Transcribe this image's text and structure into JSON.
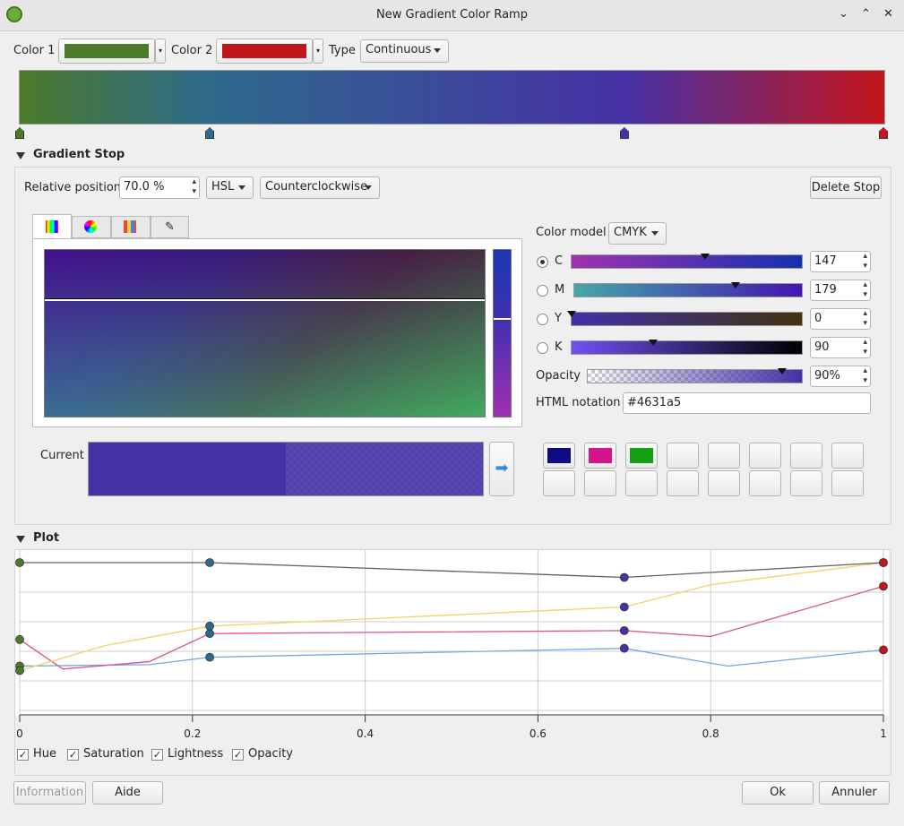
{
  "window": {
    "title": "New Gradient Color Ramp"
  },
  "toolbar": {
    "color1_label": "Color 1",
    "color1": "#4a7a2a",
    "color2_label": "Color 2",
    "color2": "#c0161c",
    "type_label": "Type",
    "type": "Continuous"
  },
  "gradient": {
    "stops": [
      {
        "position": 0,
        "color": "#4b7a2b"
      },
      {
        "position": 22,
        "color": "#2e6a8c"
      },
      {
        "position": 70,
        "color": "#4631a5"
      },
      {
        "position": 100,
        "color": "#c4161c"
      }
    ]
  },
  "gradient_stop": {
    "title": "Gradient Stop",
    "position_label": "Relative position",
    "position": "70.0 %",
    "spec": "HSL",
    "direction": "Counterclockwise",
    "delete": "Delete Stop"
  },
  "color_editor": {
    "model_label": "Color model",
    "model": "CMYK",
    "channels": [
      {
        "name": "C",
        "value": 147
      },
      {
        "name": "M",
        "value": 179
      },
      {
        "name": "Y",
        "value": 0
      },
      {
        "name": "K",
        "value": 90
      }
    ],
    "opacity_label": "Opacity",
    "opacity": {
      "value": 90,
      "label": "90%"
    },
    "html_label": "HTML notation",
    "html": "#4631a5",
    "current_label": "Current",
    "swatches": [
      "#0c0c80",
      "#d4148c",
      "#14a014"
    ]
  },
  "plot": {
    "title": "Plot",
    "type": "line",
    "xlim": [
      0,
      1
    ],
    "ylim": [
      0,
      1
    ],
    "xticks": [
      0,
      0.2,
      0.4,
      0.6,
      0.8,
      1
    ],
    "grid": true,
    "stops": [
      0,
      0.22,
      0.7,
      1
    ],
    "series": [
      {
        "name": "Hue",
        "color": "#6ea8ea",
        "x": [
          0,
          0.15,
          0.22,
          0.7,
          0.82,
          1
        ],
        "values": [
          0.3,
          0.31,
          0.36,
          0.42,
          0.3,
          0.41
        ]
      },
      {
        "name": "Saturation",
        "color": "#e0508a",
        "x": [
          0,
          0.05,
          0.15,
          0.22,
          0.7,
          0.8,
          1
        ],
        "values": [
          0.48,
          0.28,
          0.33,
          0.52,
          0.54,
          0.5,
          0.84
        ]
      },
      {
        "name": "Lightness",
        "color": "#f2d266",
        "x": [
          0,
          0.1,
          0.22,
          0.7,
          0.8,
          1
        ],
        "values": [
          0.27,
          0.44,
          0.57,
          0.7,
          0.85,
          1
        ]
      },
      {
        "name": "Opacity",
        "color": "#606060",
        "x": [
          0,
          0.22,
          0.7,
          1
        ],
        "values": [
          1,
          1,
          0.9,
          1
        ]
      }
    ]
  },
  "buttons": {
    "information": "Information",
    "help": "Aide",
    "ok": "Ok",
    "cancel": "Annuler"
  }
}
